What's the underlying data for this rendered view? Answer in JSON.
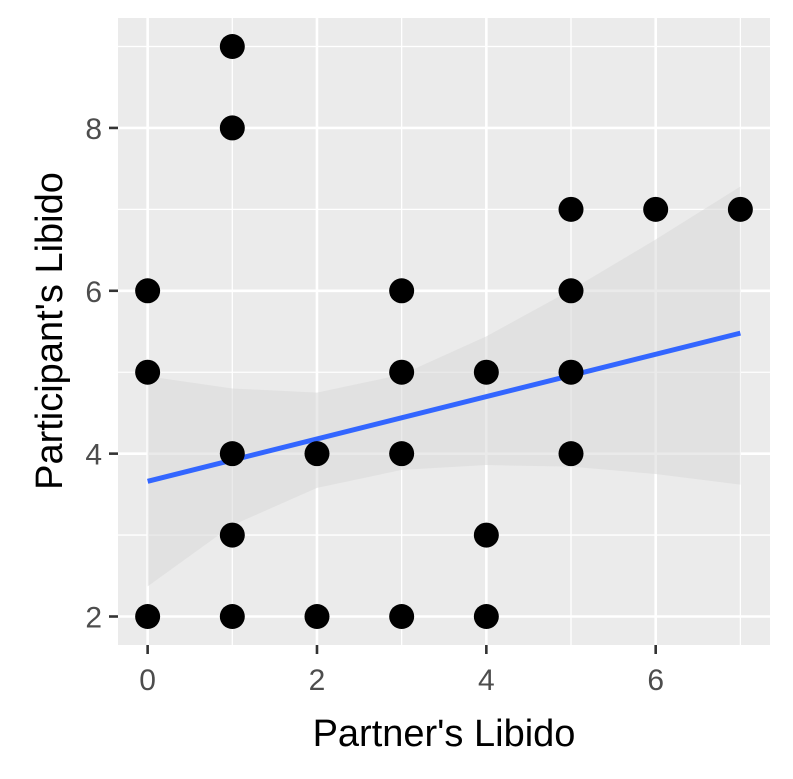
{
  "chart_data": {
    "type": "scatter",
    "title": "",
    "xlabel": "Partner's Libido",
    "ylabel": "Participant's Libido",
    "xlim": [
      -0.35,
      7.35
    ],
    "ylim": [
      1.65,
      9.35
    ],
    "x_ticks": [
      0,
      2,
      4,
      6
    ],
    "y_ticks": [
      2,
      4,
      6,
      8
    ],
    "x_tick_labels": [
      "0",
      "2",
      "4",
      "6"
    ],
    "y_tick_labels": [
      "2",
      "4",
      "6",
      "8"
    ],
    "grid": true,
    "points": [
      {
        "x": 0,
        "y": 2
      },
      {
        "x": 0,
        "y": 5
      },
      {
        "x": 0,
        "y": 6
      },
      {
        "x": 1,
        "y": 2
      },
      {
        "x": 1,
        "y": 3
      },
      {
        "x": 1,
        "y": 4
      },
      {
        "x": 1,
        "y": 8
      },
      {
        "x": 1,
        "y": 9
      },
      {
        "x": 2,
        "y": 2
      },
      {
        "x": 2,
        "y": 4
      },
      {
        "x": 3,
        "y": 2
      },
      {
        "x": 3,
        "y": 4
      },
      {
        "x": 3,
        "y": 5
      },
      {
        "x": 3,
        "y": 6
      },
      {
        "x": 4,
        "y": 2
      },
      {
        "x": 4,
        "y": 3
      },
      {
        "x": 4,
        "y": 5
      },
      {
        "x": 5,
        "y": 4
      },
      {
        "x": 5,
        "y": 5
      },
      {
        "x": 5,
        "y": 6
      },
      {
        "x": 5,
        "y": 7
      },
      {
        "x": 6,
        "y": 7
      },
      {
        "x": 7,
        "y": 7
      }
    ],
    "fit_line": {
      "method": "linear",
      "x": [
        0,
        7
      ],
      "y": [
        3.66,
        5.48
      ],
      "color": "#3366ff"
    },
    "confidence_band": {
      "x": [
        0,
        1,
        2,
        3,
        4,
        5,
        6,
        7
      ],
      "lower": [
        2.37,
        3.12,
        3.58,
        3.8,
        3.86,
        3.84,
        3.75,
        3.62
      ],
      "upper": [
        4.95,
        4.8,
        4.75,
        4.97,
        5.44,
        6.01,
        6.63,
        7.28
      ]
    },
    "colors": {
      "panel_background": "#ebebeb",
      "grid": "#ffffff",
      "point": "#000000",
      "band": "#d9d9d9"
    }
  }
}
